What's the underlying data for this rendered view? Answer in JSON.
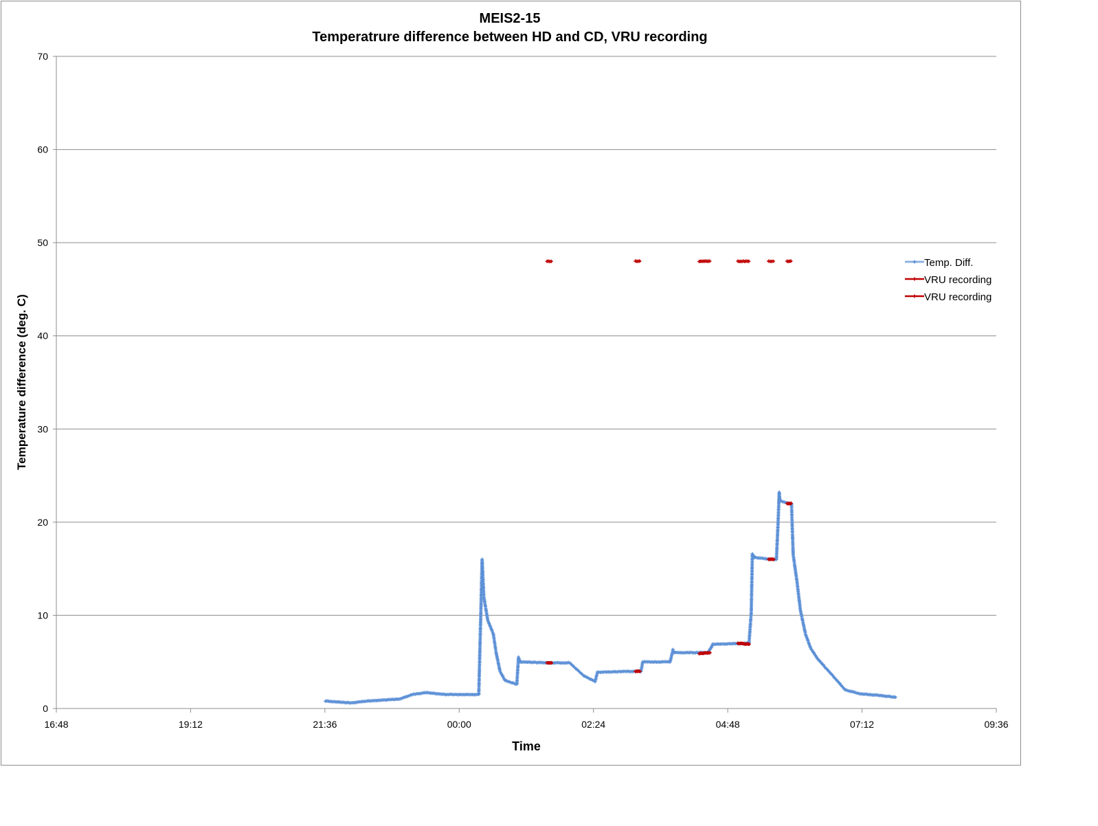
{
  "chart_data": {
    "type": "line",
    "title": "MEIS2-15",
    "subtitle": "Temperatrure difference between HD and CD, VRU recording",
    "xlabel": "Time",
    "ylabel": "Temperature difference (deg. C)",
    "x_unit": "hours since 00:00 of day 1",
    "xlim": [
      16.8,
      33.6
    ],
    "ylim": [
      0,
      70
    ],
    "x_ticks": [
      16.8,
      19.2,
      21.6,
      24.0,
      26.4,
      28.8,
      31.2,
      33.6
    ],
    "x_tick_labels": [
      "16:48",
      "19:12",
      "21:36",
      "00:00",
      "02:24",
      "04:48",
      "07:12",
      "09:36"
    ],
    "y_ticks": [
      0,
      10,
      20,
      30,
      40,
      50,
      60,
      70
    ],
    "y_tick_labels": [
      "0",
      "10",
      "20",
      "30",
      "40",
      "50",
      "60",
      "70"
    ],
    "grid": true,
    "legend_position": "right",
    "series": [
      {
        "name": "Temp. Diff.",
        "color": "#5b8fd6",
        "points": [
          [
            21.61,
            0.8
          ],
          [
            22.06,
            0.6
          ],
          [
            22.36,
            0.8
          ],
          [
            22.92,
            1.0
          ],
          [
            23.16,
            1.5
          ],
          [
            23.41,
            1.7
          ],
          [
            23.78,
            1.5
          ],
          [
            24.35,
            1.5
          ],
          [
            24.39,
            11
          ],
          [
            24.41,
            16
          ],
          [
            24.44,
            12
          ],
          [
            24.51,
            9.5
          ],
          [
            24.61,
            8
          ],
          [
            24.66,
            6
          ],
          [
            24.73,
            4
          ],
          [
            24.82,
            3
          ],
          [
            25.03,
            2.6
          ],
          [
            25.06,
            5.5
          ],
          [
            25.09,
            5.0
          ],
          [
            25.62,
            4.9
          ],
          [
            25.98,
            4.9
          ],
          [
            26.08,
            4.3
          ],
          [
            26.23,
            3.5
          ],
          [
            26.43,
            2.9
          ],
          [
            26.47,
            3.9
          ],
          [
            27.18,
            4.0
          ],
          [
            27.25,
            4.0
          ],
          [
            27.28,
            5.0
          ],
          [
            27.77,
            5.0
          ],
          [
            27.82,
            6.3
          ],
          [
            27.84,
            6.0
          ],
          [
            28.44,
            6.0
          ],
          [
            28.5,
            6.5
          ],
          [
            28.53,
            6.9
          ],
          [
            29.18,
            7.0
          ],
          [
            29.22,
            10.3
          ],
          [
            29.24,
            16.6
          ],
          [
            29.28,
            16.2
          ],
          [
            29.61,
            16.0
          ],
          [
            29.67,
            16.0
          ],
          [
            29.7,
            20
          ],
          [
            29.72,
            23.2
          ],
          [
            29.73,
            22.3
          ],
          [
            29.89,
            22.0
          ],
          [
            29.94,
            22.0
          ],
          [
            29.95,
            20
          ],
          [
            29.97,
            16.5
          ],
          [
            30.04,
            13.5
          ],
          [
            30.1,
            10.5
          ],
          [
            30.19,
            8
          ],
          [
            30.28,
            6.5
          ],
          [
            30.41,
            5.3
          ],
          [
            30.53,
            4.5
          ],
          [
            30.68,
            3.5
          ],
          [
            30.9,
            2.0
          ],
          [
            31.14,
            1.6
          ],
          [
            31.51,
            1.4
          ],
          [
            31.82,
            1.2
          ]
        ]
      },
      {
        "name": "VRU recording",
        "color": "#c00000",
        "segments": [
          [
            [
              25.57,
              4.9
            ],
            [
              25.67,
              4.9
            ]
          ],
          [
            [
              27.15,
              4.0
            ],
            [
              27.25,
              4.0
            ]
          ],
          [
            [
              28.29,
              5.9
            ],
            [
              28.5,
              6.0
            ]
          ],
          [
            [
              28.98,
              7.0
            ],
            [
              29.2,
              6.9
            ]
          ],
          [
            [
              29.53,
              16.0
            ],
            [
              29.64,
              16.0
            ]
          ],
          [
            [
              29.86,
              22.0
            ],
            [
              29.95,
              22.0
            ]
          ]
        ]
      },
      {
        "name": "VRU recording",
        "color": "#c00000",
        "value": 48,
        "segments": [
          [
            25.57,
            25.67
          ],
          [
            27.15,
            27.25
          ],
          [
            28.29,
            28.5
          ],
          [
            28.98,
            29.2
          ],
          [
            29.53,
            29.64
          ],
          [
            29.86,
            29.95
          ]
        ]
      }
    ]
  }
}
